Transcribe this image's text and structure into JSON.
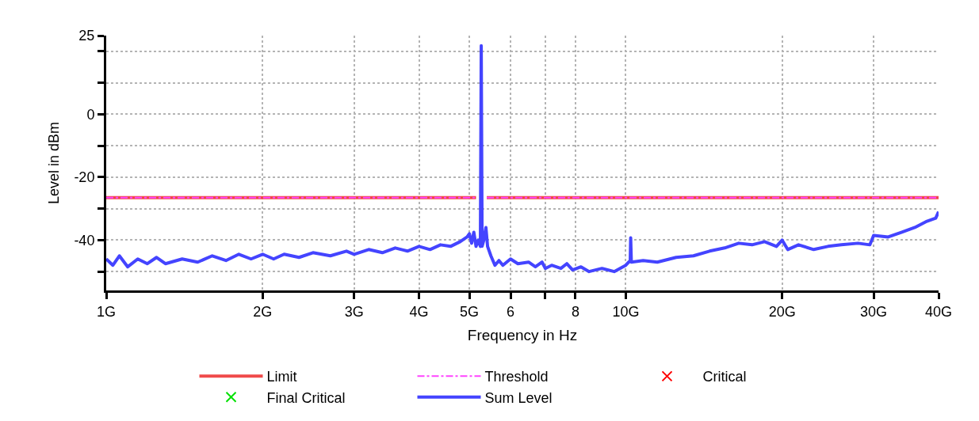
{
  "chart_data": {
    "type": "line",
    "xlabel": "Frequency in Hz",
    "ylabel": "Level in dBm",
    "log": "x",
    "grid": true,
    "legend": "bottom",
    "xlim": [
      1,
      40
    ],
    "xticks": [
      {
        "value": 1,
        "label": "1G"
      },
      {
        "value": 2,
        "label": "2G"
      },
      {
        "value": 3,
        "label": "3G"
      },
      {
        "value": 4,
        "label": "4G"
      },
      {
        "value": 5,
        "label": "5G"
      },
      6,
      {
        "value": 7,
        "label": null
      },
      8,
      {
        "value": 10,
        "label": "10G"
      },
      {
        "value": 20,
        "label": "20G"
      },
      {
        "value": 30,
        "label": "30G"
      },
      {
        "value": 40,
        "label": "40G"
      }
    ],
    "ylim": [
      -56,
      25
    ],
    "yticks": [
      25,
      {
        "value": 20,
        "label": null
      },
      {
        "value": 10,
        "label": null
      },
      0,
      {
        "value": -10,
        "label": null
      },
      -20,
      {
        "value": -30,
        "label": null
      },
      -40,
      {
        "value": -50,
        "label": null
      }
    ],
    "series": [
      {
        "name": "Limit",
        "color": "#f04a4a",
        "line_style": "solid",
        "x": [
          1,
          5.15,
          5.2,
          5.4,
          40
        ],
        "values": [
          -26.5,
          -26.5,
          null,
          -26.5,
          -26.5
        ]
      },
      {
        "name": "Threshold",
        "color": "#ff44ff",
        "line_style": "dashdot",
        "x": [
          1,
          5.15,
          5.2,
          5.4,
          40
        ],
        "values": [
          -26.5,
          -26.5,
          null,
          -26.5,
          -26.5
        ]
      },
      {
        "name": "Critical",
        "type": "scatter",
        "color": "#ff0000",
        "marker": "cross",
        "x": [
          null
        ],
        "values": [
          null
        ]
      },
      {
        "name": "Final Critical",
        "type": "scatter",
        "color": "#00e000",
        "marker": "cross",
        "x": [
          null
        ],
        "values": [
          null
        ]
      },
      {
        "name": "Sum Level",
        "color": "#4444ff",
        "line_style": "solid",
        "x": [
          1.0,
          1.03,
          1.06,
          1.1,
          1.15,
          1.2,
          1.25,
          1.3,
          1.4,
          1.5,
          1.6,
          1.7,
          1.8,
          1.9,
          2.0,
          2.1,
          2.2,
          2.35,
          2.5,
          2.7,
          2.9,
          3.0,
          3.2,
          3.4,
          3.6,
          3.8,
          4.0,
          4.2,
          4.4,
          4.6,
          4.8,
          4.95,
          5.0,
          5.05,
          5.1,
          5.15,
          5.2,
          5.25,
          5.27,
          5.29,
          5.33,
          5.38,
          5.42,
          5.5,
          5.6,
          5.7,
          5.8,
          6.0,
          6.2,
          6.5,
          6.7,
          6.9,
          7.0,
          7.2,
          7.5,
          7.7,
          7.9,
          8.2,
          8.5,
          9.0,
          9.5,
          10.0,
          10.2,
          10.22,
          10.25,
          10.8,
          11.5,
          12.5,
          13.5,
          14.5,
          15.5,
          16.5,
          17.5,
          18.5,
          19.5,
          20.0,
          20.5,
          21.5,
          23,
          24.5,
          26,
          28,
          29.5,
          30,
          32,
          34,
          36,
          38,
          39.5,
          40
        ],
        "values": [
          -46,
          -48,
          -45,
          -48.5,
          -46,
          -47.5,
          -45.5,
          -47.5,
          -46,
          -47,
          -45,
          -46.5,
          -44.5,
          -46,
          -44.5,
          -46,
          -44.5,
          -45.5,
          -44,
          -45,
          -43.5,
          -44.5,
          -43,
          -44,
          -42.5,
          -43.5,
          -42,
          -43,
          -41.5,
          -42,
          -40.5,
          -39,
          -38,
          -41,
          -37.5,
          -42,
          -40,
          -42,
          21.8,
          -42,
          -40,
          -36,
          -42,
          -45,
          -48,
          -46.5,
          -48,
          -46,
          -47.5,
          -47,
          -48.5,
          -47,
          -49,
          -48,
          -49,
          -47.5,
          -49.5,
          -48.5,
          -50,
          -49,
          -50,
          -48,
          -46.5,
          -39.3,
          -47,
          -46.5,
          -47,
          -45.5,
          -45,
          -43.5,
          -42.5,
          -41,
          -41.5,
          -40.5,
          -42,
          -40,
          -43,
          -41.5,
          -43,
          -42,
          -41.5,
          -41,
          -41.5,
          -38.5,
          -39,
          -37.5,
          -36,
          -34,
          -33,
          -31
        ]
      }
    ]
  }
}
